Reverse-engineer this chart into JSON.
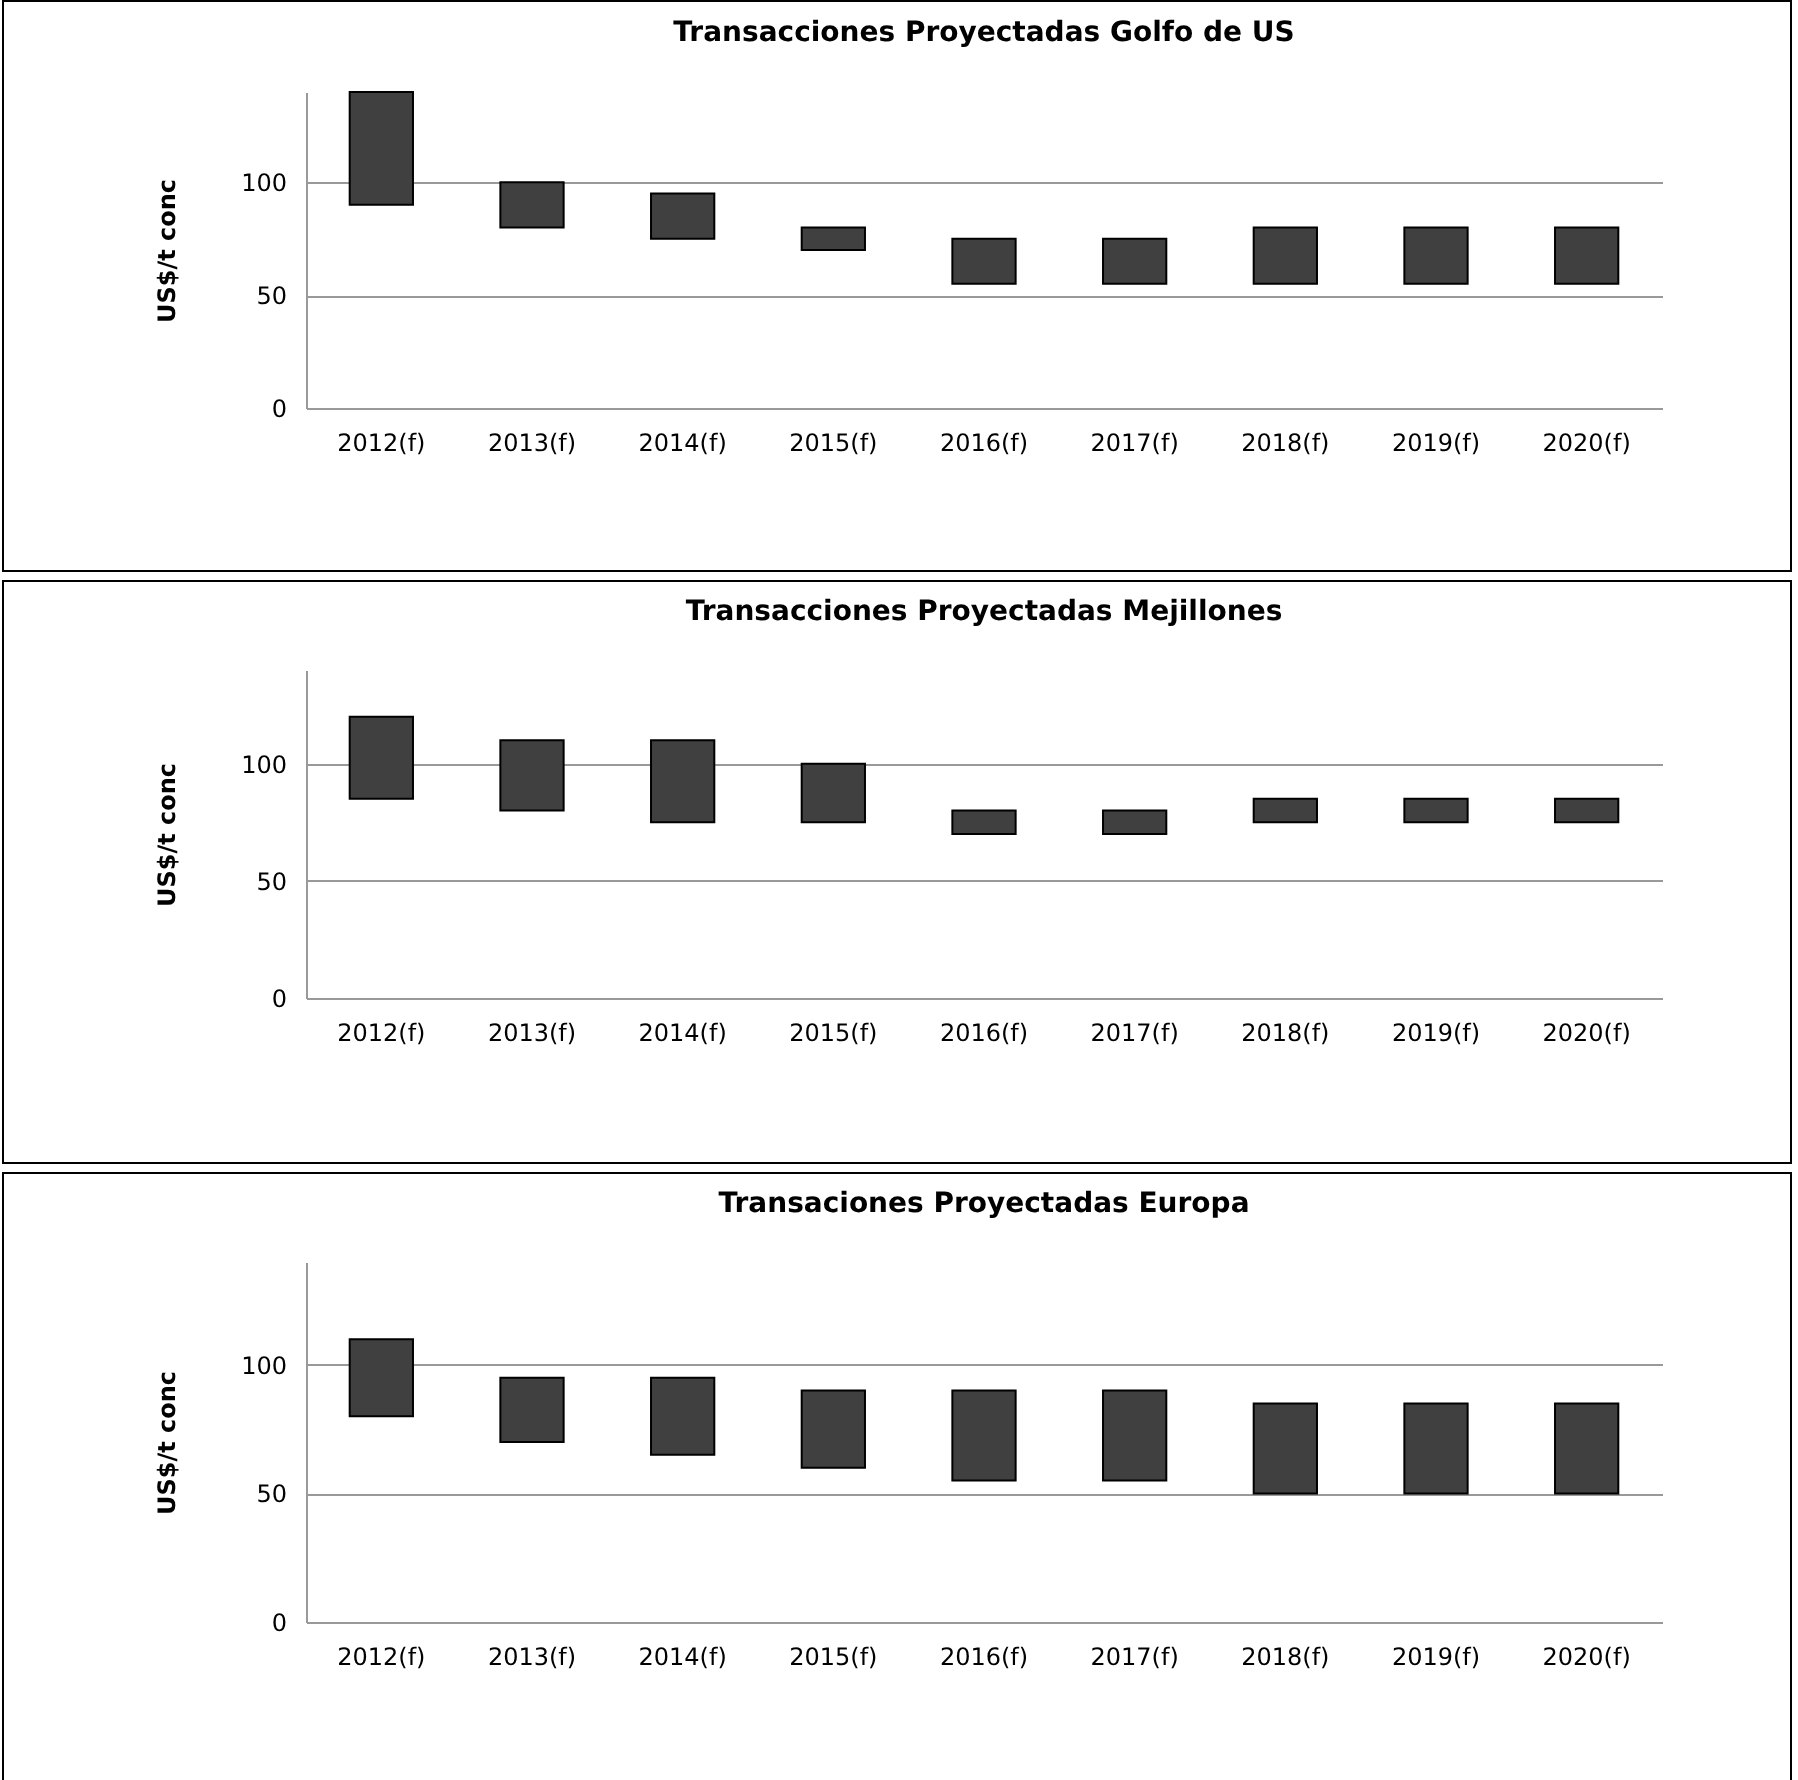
{
  "chart_data": [
    {
      "type": "bar",
      "title": "Transacciones  Proyectadas Golfo de US",
      "ylabel": "US$/t conc",
      "categories": [
        "2012(f)",
        "2013(f)",
        "2014(f)",
        "2015(f)",
        "2016(f)",
        "2017(f)",
        "2018(f)",
        "2019(f)",
        "2020(f)"
      ],
      "series": [
        {
          "color": "#404040",
          "base": [
            90,
            80,
            75,
            70,
            55,
            55,
            55,
            55,
            55
          ],
          "values": [
            50,
            20,
            20,
            10,
            20,
            20,
            25,
            25,
            25
          ]
        }
      ],
      "ylim": [
        0,
        140
      ],
      "yticks": [
        0,
        50,
        100
      ],
      "grid": "y"
    },
    {
      "type": "bar",
      "title": "Transacciones Proyectadas Mejillones",
      "ylabel": "US$/t conc",
      "categories": [
        "2012(f)",
        "2013(f)",
        "2014(f)",
        "2015(f)",
        "2016(f)",
        "2017(f)",
        "2018(f)",
        "2019(f)",
        "2020(f)"
      ],
      "series": [
        {
          "color": "#404040",
          "base": [
            85,
            80,
            75,
            75,
            70,
            70,
            75,
            75,
            75
          ],
          "values": [
            35,
            30,
            35,
            25,
            10,
            10,
            10,
            10,
            10
          ]
        }
      ],
      "ylim": [
        0,
        140
      ],
      "yticks": [
        0,
        50,
        100
      ],
      "grid": "y"
    },
    {
      "type": "bar",
      "title": "Transaciones Proyectadas Europa",
      "ylabel": "US$/t conc",
      "categories": [
        "2012(f)",
        "2013(f)",
        "2014(f)",
        "2015(f)",
        "2016(f)",
        "2017(f)",
        "2018(f)",
        "2019(f)",
        "2020(f)"
      ],
      "series": [
        {
          "color": "#404040",
          "base": [
            80,
            70,
            65,
            60,
            55,
            55,
            50,
            50,
            50
          ],
          "values": [
            30,
            25,
            30,
            30,
            35,
            35,
            35,
            35,
            35
          ]
        }
      ],
      "ylim": [
        0,
        140
      ],
      "yticks": [
        0,
        50,
        100
      ],
      "grid": "y"
    }
  ]
}
